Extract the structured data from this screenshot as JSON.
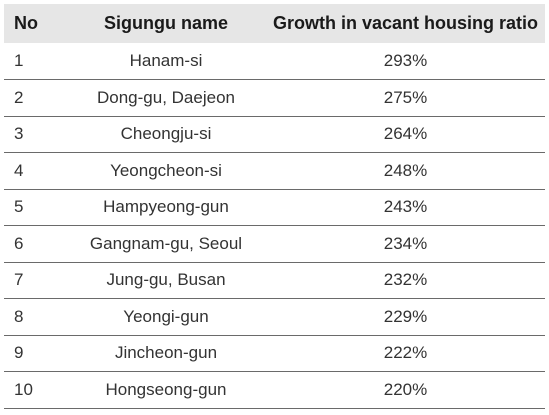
{
  "table": {
    "headers": {
      "no": "No",
      "name": "Sigungu name",
      "growth": "Growth in vacant housing ratio"
    },
    "rows": [
      {
        "no": "1",
        "name": "Hanam-si",
        "growth": "293%"
      },
      {
        "no": "2",
        "name": "Dong-gu, Daejeon",
        "growth": "275%"
      },
      {
        "no": "3",
        "name": "Cheongju-si",
        "growth": "264%"
      },
      {
        "no": "4",
        "name": "Yeongcheon-si",
        "growth": "248%"
      },
      {
        "no": "5",
        "name": "Hampyeong-gun",
        "growth": "243%"
      },
      {
        "no": "6",
        "name": "Gangnam-gu, Seoul",
        "growth": "234%"
      },
      {
        "no": "7",
        "name": "Jung-gu, Busan",
        "growth": "232%"
      },
      {
        "no": "8",
        "name": "Yeongi-gun",
        "growth": "229%"
      },
      {
        "no": "9",
        "name": "Jincheon-gun",
        "growth": "222%"
      },
      {
        "no": "10",
        "name": "Hongseong-gun",
        "growth": "220%"
      }
    ]
  },
  "colors": {
    "header_background": "#e6e6e6",
    "row_divider": "#6a6a6a"
  }
}
